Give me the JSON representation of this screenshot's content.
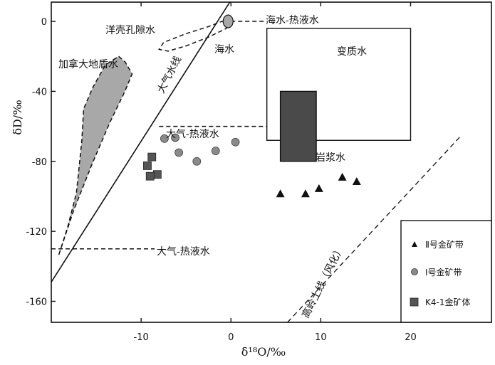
{
  "chart_data": {
    "type": "scatter",
    "xlabel": "δ¹⁸O/‰",
    "ylabel": "δD/‰",
    "xlim": [
      -20,
      29
    ],
    "ylim": [
      -172,
      11
    ],
    "x_ticks": [
      "-10",
      "0",
      "10",
      "20"
    ],
    "x_tick_values": [
      -10,
      0,
      10,
      20
    ],
    "y_ticks": [
      "0",
      "-40",
      "-80",
      "-120",
      "-160"
    ],
    "y_tick_values": [
      0,
      -40,
      -80,
      -120,
      -160
    ],
    "grid": false,
    "legend_position": "bottom-right",
    "series": [
      {
        "name": "Ⅱ号金矿带",
        "marker": "triangle",
        "color": "#111111",
        "points": [
          [
            5.5,
            -98.5
          ],
          [
            8.3,
            -98.5
          ],
          [
            9.8,
            -95.5
          ],
          [
            12.4,
            -89
          ],
          [
            14.0,
            -91.5
          ]
        ]
      },
      {
        "name": "Ⅰ号金矿带",
        "marker": "circle",
        "color": "#8a8a8a",
        "points": [
          [
            -7.4,
            -67
          ],
          [
            -6.2,
            -66.5
          ],
          [
            -5.8,
            -75
          ],
          [
            -3.8,
            -80
          ],
          [
            -1.7,
            -74
          ],
          [
            0.5,
            -69
          ]
        ]
      },
      {
        "name": "K4-1金矿体",
        "marker": "square",
        "color": "#555555",
        "points": [
          [
            -8.8,
            -77.5
          ],
          [
            -9.3,
            -82.5
          ],
          [
            -8.2,
            -87.5
          ],
          [
            -9.0,
            -88.5
          ]
        ]
      }
    ],
    "regions": {
      "meteoric_water_line": [
        [
          -20,
          -149
        ],
        [
          0,
          12
        ]
      ],
      "kaolinite_line": [
        [
          6.3,
          -172
        ],
        [
          25.5,
          -66
        ]
      ],
      "metamorphic_water": {
        "x": [
          4,
          20
        ],
        "y": [
          -68,
          -4
        ]
      },
      "magmatic_water": {
        "x": [
          5.5,
          9.5
        ],
        "y": [
          -80,
          -40
        ]
      },
      "seawater": {
        "x": 0,
        "y": 0
      },
      "canada_shield_water": [
        [
          -12.5,
          -20
        ],
        [
          -11.8,
          -23
        ],
        [
          -11.0,
          -30
        ],
        [
          -11.8,
          -40
        ],
        [
          -13.5,
          -58
        ],
        [
          -15.5,
          -82
        ],
        [
          -17.5,
          -108
        ],
        [
          -19.2,
          -134
        ],
        [
          -18.2,
          -118
        ],
        [
          -17.2,
          -98
        ],
        [
          -16.6,
          -68
        ],
        [
          -16.4,
          -50
        ],
        [
          -15.4,
          -38
        ],
        [
          -14.0,
          -25
        ]
      ],
      "pore_water": [
        [
          0,
          -1
        ],
        [
          -1,
          0
        ],
        [
          -2.5,
          -3
        ],
        [
          -5,
          -7
        ],
        [
          -7.5,
          -12
        ],
        [
          -8,
          -16
        ],
        [
          -7,
          -17
        ],
        [
          -5,
          -14
        ],
        [
          -2.5,
          -9
        ],
        [
          -0.5,
          -4
        ]
      ],
      "seawater_mixing_lines": [
        [
          [
            0,
            0
          ],
          [
            4,
            0
          ]
        ],
        [
          [
            -8,
            -60
          ],
          [
            4,
            -60
          ]
        ],
        [
          [
            -20,
            -130
          ],
          [
            -8.5,
            -130
          ]
        ]
      ]
    },
    "annotations": {
      "pore_water": "洋壳孔隙水",
      "seawater_hydrothermal": "海水-热液水",
      "seawater": "海水",
      "metamorphic": "变质水",
      "canada_shield": "加拿大地盾水",
      "meteoric_line": "大气水线",
      "meteoric_hydrothermal_1": "大气-热液水",
      "magmatic": "岩浆水",
      "meteoric_hydrothermal_2": "大气-热液水",
      "kaolinite_line": "高岭土线（风化）"
    }
  }
}
